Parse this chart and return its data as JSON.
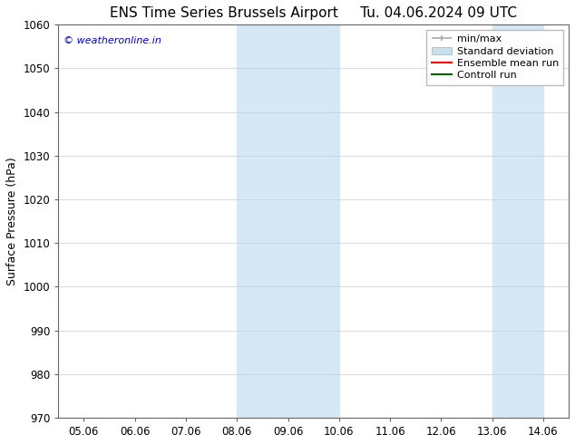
{
  "title_left": "ENS Time Series Brussels Airport",
  "title_right": "Tu. 04.06.2024 09 UTC",
  "ylabel": "Surface Pressure (hPa)",
  "ylim": [
    970,
    1060
  ],
  "yticks": [
    970,
    980,
    990,
    1000,
    1010,
    1020,
    1030,
    1040,
    1050,
    1060
  ],
  "xtick_labels": [
    "05.06",
    "06.06",
    "07.06",
    "08.06",
    "09.06",
    "10.06",
    "11.06",
    "12.06",
    "13.06",
    "14.06"
  ],
  "shaded_regions": [
    {
      "xstart": 3,
      "xend": 5
    },
    {
      "xstart": 8,
      "xend": 9
    }
  ],
  "shaded_color": "#d6e8f5",
  "watermark": "© weatheronline.in",
  "watermark_color": "#0000cc",
  "legend_items": [
    {
      "label": "min/max"
    },
    {
      "label": "Standard deviation"
    },
    {
      "label": "Ensemble mean run"
    },
    {
      "label": "Controll run"
    }
  ],
  "minmax_color": "#aaaaaa",
  "stddev_color": "#c8dff0",
  "ensemble_color": "#ff0000",
  "control_color": "#006600",
  "background_color": "#ffffff",
  "grid_color": "#cccccc",
  "title_fontsize": 11,
  "axis_label_fontsize": 9,
  "tick_fontsize": 8.5,
  "legend_fontsize": 8,
  "watermark_fontsize": 8
}
